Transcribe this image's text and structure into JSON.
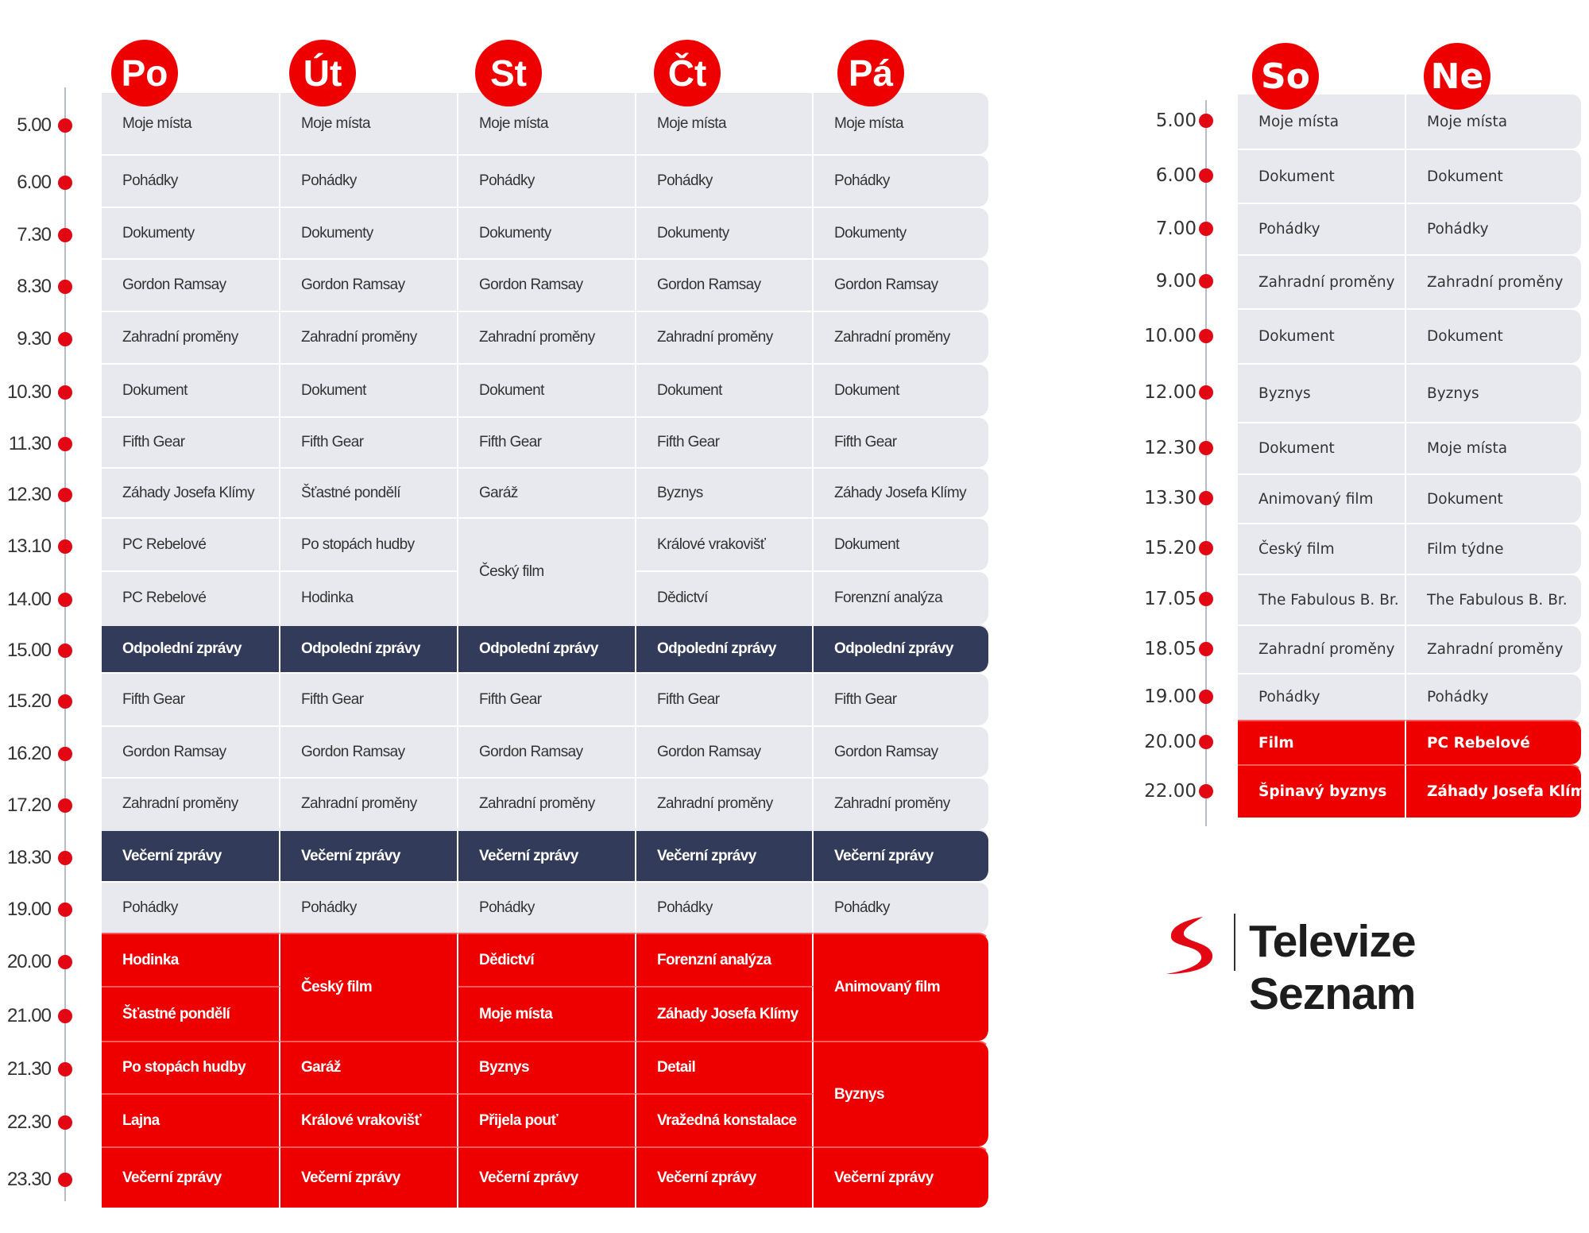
{
  "colors": {
    "accent": "#ee0000",
    "news": "#333b5b",
    "cell": "#e7e9ee"
  },
  "weekdays": {
    "days": [
      "Po",
      "Út",
      "St",
      "Čt",
      "Pá"
    ],
    "times": [
      "5.00",
      "6.00",
      "7.30",
      "8.30",
      "9.30",
      "10.30",
      "11.30",
      "12.30",
      "13.10",
      "14.00",
      "15.00",
      "15.20",
      "16.20",
      "17.20",
      "18.30",
      "19.00",
      "20.00",
      "21.00",
      "21.30",
      "22.30",
      "23.30"
    ],
    "bands": [
      "day",
      "day",
      "day",
      "day",
      "day",
      "day",
      "day",
      "day",
      "day",
      "day",
      "news",
      "day",
      "day",
      "day",
      "news",
      "day",
      "prime",
      "prime",
      "prime",
      "prime",
      "prime"
    ],
    "columns": [
      [
        {
          "t": "Moje místa"
        },
        {
          "t": "Pohádky"
        },
        {
          "t": "Dokumenty"
        },
        {
          "t": "Gordon Ramsay"
        },
        {
          "t": "Zahradní proměny"
        },
        {
          "t": "Dokument"
        },
        {
          "t": "Fifth Gear"
        },
        {
          "t": "Záhady Josefa Klímy"
        },
        {
          "t": "PC Rebelové"
        },
        {
          "t": "PC Rebelové"
        },
        {
          "t": "Odpolední zprávy"
        },
        {
          "t": "Fifth Gear"
        },
        {
          "t": "Gordon Ramsay"
        },
        {
          "t": "Zahradní proměny"
        },
        {
          "t": "Večerní zprávy"
        },
        {
          "t": "Pohádky"
        },
        {
          "t": "Hodinka"
        },
        {
          "t": "Šťastné pondělí"
        },
        {
          "t": "Po stopách hudby"
        },
        {
          "t": "Lajna"
        },
        {
          "t": "Večerní zprávy"
        }
      ],
      [
        {
          "t": "Moje místa"
        },
        {
          "t": "Pohádky"
        },
        {
          "t": "Dokumenty"
        },
        {
          "t": "Gordon Ramsay"
        },
        {
          "t": "Zahradní proměny"
        },
        {
          "t": "Dokument"
        },
        {
          "t": "Fifth Gear"
        },
        {
          "t": "Šťastné pondělí"
        },
        {
          "t": "Po stopách hudby"
        },
        {
          "t": "Hodinka"
        },
        {
          "t": "Odpolední zprávy"
        },
        {
          "t": "Fifth Gear"
        },
        {
          "t": "Gordon Ramsay"
        },
        {
          "t": "Zahradní proměny"
        },
        {
          "t": "Večerní zprávy"
        },
        {
          "t": "Pohádky"
        },
        {
          "t": "Český film",
          "span": 2
        },
        {
          "t": "Garáž"
        },
        {
          "t": "Králové vrakovišť"
        },
        {
          "t": "Večerní zprávy"
        }
      ],
      [
        {
          "t": "Moje místa"
        },
        {
          "t": "Pohádky"
        },
        {
          "t": "Dokumenty"
        },
        {
          "t": "Gordon Ramsay"
        },
        {
          "t": "Zahradní proměny"
        },
        {
          "t": "Dokument"
        },
        {
          "t": "Fifth Gear"
        },
        {
          "t": "Garáž"
        },
        {
          "t": "Český film",
          "span": 2
        },
        {
          "t": "Odpolední zprávy"
        },
        {
          "t": "Fifth Gear"
        },
        {
          "t": "Gordon Ramsay"
        },
        {
          "t": "Zahradní proměny"
        },
        {
          "t": "Večerní zprávy"
        },
        {
          "t": "Pohádky"
        },
        {
          "t": "Dědictví"
        },
        {
          "t": "Moje místa"
        },
        {
          "t": "Byznys"
        },
        {
          "t": "Přijela pouť"
        },
        {
          "t": "Večerní zprávy"
        }
      ],
      [
        {
          "t": "Moje místa"
        },
        {
          "t": "Pohádky"
        },
        {
          "t": "Dokumenty"
        },
        {
          "t": "Gordon Ramsay"
        },
        {
          "t": "Zahradní proměny"
        },
        {
          "t": "Dokument"
        },
        {
          "t": "Fifth Gear"
        },
        {
          "t": "Byznys"
        },
        {
          "t": "Králové vrakovišť"
        },
        {
          "t": "Dědictví"
        },
        {
          "t": "Odpolední zprávy"
        },
        {
          "t": "Fifth Gear"
        },
        {
          "t": "Gordon Ramsay"
        },
        {
          "t": "Zahradní proměny"
        },
        {
          "t": "Večerní zprávy"
        },
        {
          "t": "Pohádky"
        },
        {
          "t": "Forenzní analýza"
        },
        {
          "t": "Záhady Josefa Klímy"
        },
        {
          "t": "Detail"
        },
        {
          "t": "Vražedná konstalace"
        },
        {
          "t": "Večerní zprávy"
        }
      ],
      [
        {
          "t": "Moje místa"
        },
        {
          "t": "Pohádky"
        },
        {
          "t": "Dokumenty"
        },
        {
          "t": "Gordon Ramsay"
        },
        {
          "t": "Zahradní proměny"
        },
        {
          "t": "Dokument"
        },
        {
          "t": "Fifth Gear"
        },
        {
          "t": "Záhady Josefa Klímy"
        },
        {
          "t": "Dokument"
        },
        {
          "t": "Forenzní analýza"
        },
        {
          "t": "Odpolední zprávy"
        },
        {
          "t": "Fifth Gear"
        },
        {
          "t": "Gordon Ramsay"
        },
        {
          "t": "Zahradní proměny"
        },
        {
          "t": "Večerní zprávy"
        },
        {
          "t": "Pohádky"
        },
        {
          "t": "Animovaný film",
          "span": 2
        },
        {
          "t": "Byznys",
          "span": 2
        },
        {
          "t": "Večerní zprávy"
        }
      ]
    ]
  },
  "weekend": {
    "days": [
      "So",
      "Ne"
    ],
    "times": [
      "5.00",
      "6.00",
      "7.00",
      "9.00",
      "10.00",
      "12.00",
      "12.30",
      "13.30",
      "15.20",
      "17.05",
      "18.05",
      "19.00",
      "20.00",
      "22.00"
    ],
    "bands": [
      "day",
      "day",
      "day",
      "day",
      "day",
      "day",
      "day",
      "day",
      "day",
      "day",
      "day",
      "day",
      "prime",
      "prime"
    ],
    "columns": [
      [
        {
          "t": "Moje místa"
        },
        {
          "t": "Dokument"
        },
        {
          "t": "Pohádky"
        },
        {
          "t": "Zahradní proměny"
        },
        {
          "t": "Dokument"
        },
        {
          "t": "Byznys"
        },
        {
          "t": "Dokument"
        },
        {
          "t": "Animovaný film"
        },
        {
          "t": "Český film"
        },
        {
          "t": "The Fabulous B. Br."
        },
        {
          "t": "Zahradní proměny"
        },
        {
          "t": "Pohádky"
        },
        {
          "t": "Film"
        },
        {
          "t": "Špinavý byznys"
        }
      ],
      [
        {
          "t": "Moje místa"
        },
        {
          "t": "Dokument"
        },
        {
          "t": "Pohádky"
        },
        {
          "t": "Zahradní proměny"
        },
        {
          "t": "Dokument"
        },
        {
          "t": "Byznys"
        },
        {
          "t": "Moje místa"
        },
        {
          "t": "Dokument"
        },
        {
          "t": "Film týdne"
        },
        {
          "t": "The Fabulous B. Br."
        },
        {
          "t": "Zahradní proměny"
        },
        {
          "t": "Pohádky"
        },
        {
          "t": "PC Rebelové"
        },
        {
          "t": "Záhady Josefa Klímy"
        }
      ]
    ]
  },
  "logo": {
    "text": "Televize Seznam",
    "icon": "seznam-s-logo"
  }
}
